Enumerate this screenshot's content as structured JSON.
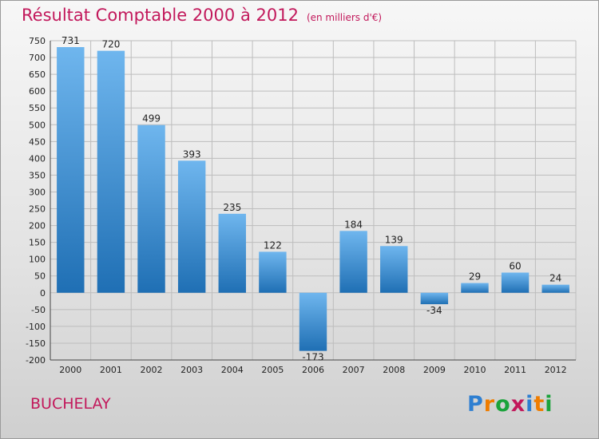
{
  "chart_data": {
    "type": "bar",
    "title": "Résultat Comptable 2000 à 2012",
    "subtitle": "(en milliers d'€)",
    "categories": [
      "2000",
      "2001",
      "2002",
      "2003",
      "2004",
      "2005",
      "2006",
      "2007",
      "2008",
      "2009",
      "2010",
      "2011",
      "2012"
    ],
    "values": [
      731,
      720,
      499,
      393,
      235,
      122,
      -173,
      184,
      139,
      -34,
      29,
      60,
      24
    ],
    "ylim": [
      -200,
      750
    ],
    "yticks": [
      750,
      700,
      650,
      600,
      550,
      500,
      450,
      400,
      350,
      300,
      250,
      200,
      150,
      100,
      50,
      0,
      -50,
      -100,
      -150,
      -200
    ],
    "grid": true,
    "legend": "none"
  },
  "location": "BUCHELAY",
  "logo": {
    "letters": [
      "P",
      "r",
      "o",
      "x",
      "i",
      "t",
      "i"
    ],
    "colors": [
      "#2e7fd1",
      "#ef7d00",
      "#1aa33a",
      "#c2185b",
      "#2e7fd1",
      "#ef7d00",
      "#1aa33a"
    ]
  },
  "colors": {
    "accent": "#c2185b",
    "bar_top": "#6fb6ee",
    "bar_bottom": "#1f6fb4",
    "grid": "#bdbdbd"
  }
}
